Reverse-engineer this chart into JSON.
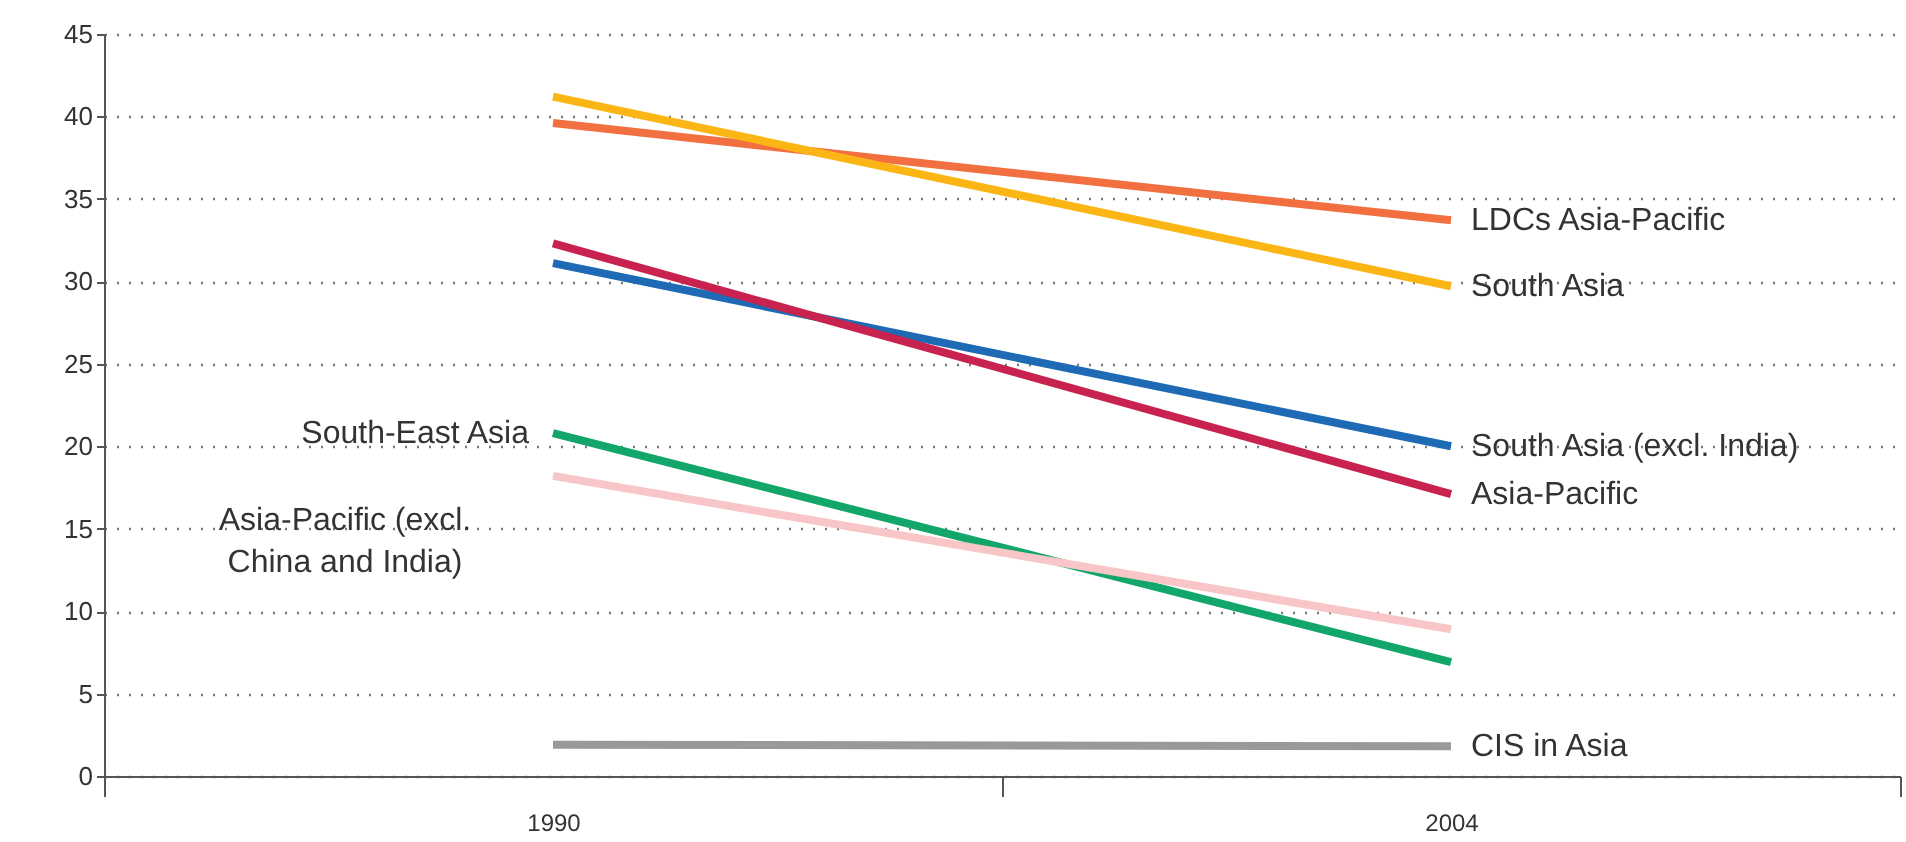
{
  "chart_data": {
    "type": "line",
    "categories": [
      "1990",
      "2004"
    ],
    "ylim": [
      0,
      45
    ],
    "yticks": [
      0,
      5,
      10,
      15,
      20,
      25,
      30,
      35,
      40,
      45
    ],
    "grid": "y",
    "series": [
      {
        "name": "LDCs Asia-Pacific",
        "color": "#f26f3f",
        "values": [
          39.6,
          33.7
        ]
      },
      {
        "name": "South Asia",
        "color": "#fbb515",
        "values": [
          41.2,
          29.7
        ]
      },
      {
        "name": "South Asia (excl. India)",
        "color": "#1f6ab4",
        "values": [
          31.1,
          20.0
        ]
      },
      {
        "name": "Asia-Pacific",
        "color": "#c8234e",
        "values": [
          32.3,
          17.1
        ]
      },
      {
        "name": "South-East Asia",
        "color": "#12a66a",
        "values": [
          20.8,
          6.9
        ]
      },
      {
        "name": "Asia-Pacific (excl. China and India)",
        "color": "#f8c6c6",
        "values": [
          18.2,
          8.9
        ]
      },
      {
        "name": "CIS in Asia",
        "color": "#999999",
        "values": [
          1.9,
          1.8
        ]
      }
    ]
  }
}
